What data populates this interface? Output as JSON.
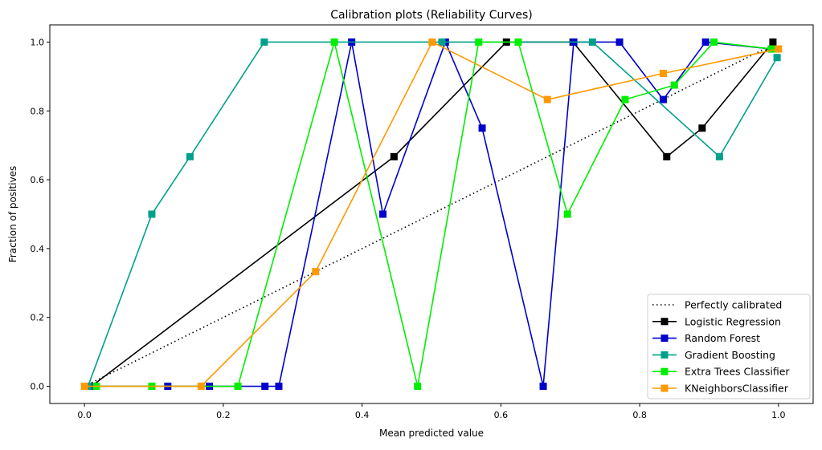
{
  "chart_data": {
    "type": "line",
    "title": "Calibration plots (Reliability Curves)",
    "xlabel": "Mean predicted value",
    "ylabel": "Fraction of positives",
    "xlim": [
      -0.05,
      1.05
    ],
    "ylim": [
      -0.05,
      1.05
    ],
    "xticks": [
      "0.0",
      "0.2",
      "0.4",
      "0.6",
      "0.8",
      "1.0"
    ],
    "yticks": [
      "0.0",
      "0.2",
      "0.4",
      "0.6",
      "0.8",
      "1.0"
    ],
    "grid": false,
    "legend_position": "lower-right",
    "reference": {
      "name": "Perfectly calibrated",
      "color": "#000000",
      "style": "dotted",
      "x": [
        0,
        1
      ],
      "y": [
        0,
        1
      ]
    },
    "series": [
      {
        "name": "Logistic Regression",
        "color": "#000000",
        "x": [
          0.01,
          0.446,
          0.608,
          0.704,
          0.839,
          0.89,
          0.992
        ],
        "y": [
          0.0,
          0.667,
          1.0,
          1.0,
          0.667,
          0.75,
          1.0
        ]
      },
      {
        "name": "Random Forest",
        "color": "#0000cc",
        "x": [
          0.01,
          0.12,
          0.18,
          0.26,
          0.28,
          0.385,
          0.43,
          0.52,
          0.573,
          0.661,
          0.705,
          0.771,
          0.834,
          0.895,
          0.99
        ],
        "y": [
          0.0,
          0.0,
          0.0,
          0.0,
          0.0,
          1.0,
          0.5,
          1.0,
          0.75,
          0.0,
          1.0,
          1.0,
          0.833,
          1.0,
          0.98
        ]
      },
      {
        "name": "Gradient Boosting",
        "color": "#00a08a",
        "x": [
          0.005,
          0.097,
          0.152,
          0.259,
          0.515,
          0.732,
          0.915,
          0.998
        ],
        "y": [
          0.0,
          0.5,
          0.667,
          1.0,
          1.0,
          1.0,
          0.667,
          0.955
        ]
      },
      {
        "name": "Extra Trees Classifier",
        "color": "#00ee00",
        "x": [
          0.017,
          0.097,
          0.221,
          0.36,
          0.48,
          0.568,
          0.625,
          0.696,
          0.779,
          0.85,
          0.907,
          0.99
        ],
        "y": [
          0.0,
          0.0,
          0.0,
          1.0,
          0.0,
          1.0,
          1.0,
          0.5,
          0.833,
          0.875,
          1.0,
          0.98
        ]
      },
      {
        "name": "KNeighborsClassifier",
        "color": "#ff9900",
        "x": [
          0.0,
          0.168,
          0.333,
          0.501,
          0.667,
          0.834,
          1.0
        ],
        "y": [
          0.0,
          0.0,
          0.333,
          1.0,
          0.833,
          0.909,
          0.98
        ]
      }
    ]
  }
}
